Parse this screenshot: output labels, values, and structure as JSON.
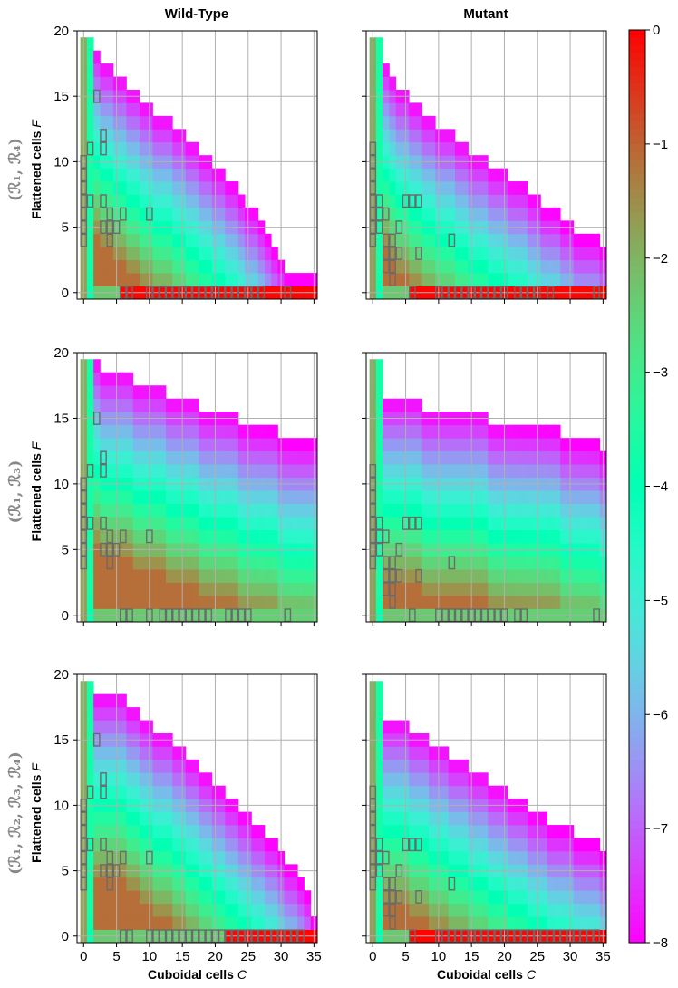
{
  "chart_data": {
    "type": "heatmap",
    "column_titles": [
      "Wild-Type",
      "Mutant"
    ],
    "row_labels": [
      "(ℛ₁, ℛ₄)",
      "(ℛ₁, ℛ₃)",
      "(ℛ₁, ℛ₂, ℛ₃, ℛ₄)"
    ],
    "ylabel_text": "Flattened cells ",
    "ylabel_var": "F",
    "xlabel_text": "Cuboidal cells ",
    "xlabel_var": "C",
    "xlim": [
      -1,
      35.5
    ],
    "ylim": [
      -0.5,
      20
    ],
    "xticks": [
      0,
      5,
      10,
      15,
      20,
      25,
      30,
      35
    ],
    "yticks": [
      0,
      5,
      10,
      15,
      20
    ],
    "grid": true,
    "colorbar": {
      "min": -8,
      "max": 0,
      "ticks": [
        0,
        -1,
        -2,
        -3,
        -4,
        -5,
        -6,
        -7,
        -8
      ],
      "tick_labels": [
        "0",
        "−1",
        "−2",
        "−3",
        "−4",
        "−5",
        "−6",
        "−7",
        "−8"
      ],
      "colormap": "rainbow"
    },
    "panels": [
      {
        "row": 0,
        "col": 0,
        "upper_boundary_F": [
          19,
          19,
          18,
          17,
          17,
          16,
          16,
          15,
          15,
          14,
          14,
          13,
          13,
          13,
          12,
          12,
          11,
          11,
          10,
          10,
          9,
          9,
          8,
          8,
          7,
          6,
          6,
          5,
          4,
          3,
          2,
          1,
          1,
          1,
          1,
          1,
          0
        ],
        "strong_row_0": [
          6,
          35
        ],
        "boxes": [
          [
            0,
            4
          ],
          [
            0,
            5
          ],
          [
            0,
            6
          ],
          [
            0,
            7
          ],
          [
            0,
            8
          ],
          [
            0,
            9
          ],
          [
            0,
            10
          ],
          [
            1,
            7
          ],
          [
            1,
            11
          ],
          [
            2,
            15
          ],
          [
            3,
            7
          ],
          [
            3,
            11
          ],
          [
            3,
            12
          ],
          [
            3,
            5
          ],
          [
            4,
            4
          ],
          [
            4,
            5
          ],
          [
            4,
            6
          ],
          [
            5,
            5
          ],
          [
            6,
            6
          ],
          [
            10,
            6
          ],
          [
            6,
            0
          ],
          [
            7,
            0
          ],
          [
            10,
            0
          ],
          [
            11,
            0
          ],
          [
            12,
            0
          ],
          [
            13,
            0
          ],
          [
            14,
            0
          ],
          [
            15,
            0
          ],
          [
            16,
            0
          ],
          [
            17,
            0
          ],
          [
            18,
            0
          ],
          [
            19,
            0
          ],
          [
            20,
            0
          ],
          [
            21,
            0
          ],
          [
            22,
            0
          ],
          [
            23,
            0
          ],
          [
            24,
            0
          ],
          [
            25,
            0
          ],
          [
            26,
            0
          ],
          [
            27,
            0
          ],
          [
            31,
            0
          ]
        ]
      },
      {
        "row": 0,
        "col": 1,
        "upper_boundary_F": [
          19,
          19,
          17,
          16,
          15,
          15,
          14,
          14,
          13,
          13,
          12,
          12,
          12,
          11,
          11,
          10,
          10,
          10,
          9,
          9,
          9,
          8,
          8,
          8,
          7,
          7,
          6,
          6,
          6,
          5,
          5,
          4,
          4,
          4,
          4,
          3,
          0
        ],
        "strong_row_0": [
          6,
          35
        ],
        "boxes": [
          [
            0,
            4
          ],
          [
            0,
            5
          ],
          [
            0,
            6
          ],
          [
            0,
            7
          ],
          [
            0,
            8
          ],
          [
            0,
            9
          ],
          [
            0,
            10
          ],
          [
            0,
            11
          ],
          [
            1,
            5
          ],
          [
            1,
            6
          ],
          [
            1,
            7
          ],
          [
            2,
            2
          ],
          [
            2,
            3
          ],
          [
            2,
            4
          ],
          [
            2,
            6
          ],
          [
            3,
            1
          ],
          [
            3,
            2
          ],
          [
            3,
            3
          ],
          [
            3,
            4
          ],
          [
            4,
            3
          ],
          [
            4,
            5
          ],
          [
            5,
            7
          ],
          [
            6,
            7
          ],
          [
            7,
            7
          ],
          [
            7,
            3
          ],
          [
            12,
            4
          ],
          [
            6,
            0
          ],
          [
            10,
            0
          ],
          [
            11,
            0
          ],
          [
            12,
            0
          ],
          [
            13,
            0
          ],
          [
            14,
            0
          ],
          [
            15,
            0
          ],
          [
            16,
            0
          ],
          [
            17,
            0
          ],
          [
            18,
            0
          ],
          [
            19,
            0
          ],
          [
            20,
            0
          ],
          [
            22,
            0
          ],
          [
            23,
            0
          ],
          [
            24,
            0
          ],
          [
            25,
            0
          ],
          [
            27,
            0
          ],
          [
            34,
            0
          ]
        ]
      },
      {
        "row": 1,
        "col": 0,
        "upper_boundary_F": [
          19,
          19,
          19,
          18,
          18,
          18,
          18,
          18,
          17,
          17,
          17,
          17,
          17,
          16,
          16,
          16,
          16,
          16,
          15,
          15,
          15,
          15,
          15,
          15,
          14,
          14,
          14,
          14,
          14,
          14,
          13,
          13,
          13,
          13,
          13,
          13,
          0
        ],
        "strong_row_0": null,
        "boxes": [
          [
            0,
            4
          ],
          [
            0,
            5
          ],
          [
            0,
            6
          ],
          [
            0,
            7
          ],
          [
            0,
            8
          ],
          [
            0,
            9
          ],
          [
            0,
            10
          ],
          [
            1,
            7
          ],
          [
            1,
            11
          ],
          [
            2,
            15
          ],
          [
            3,
            7
          ],
          [
            3,
            11
          ],
          [
            3,
            12
          ],
          [
            3,
            5
          ],
          [
            4,
            4
          ],
          [
            4,
            5
          ],
          [
            4,
            6
          ],
          [
            5,
            5
          ],
          [
            6,
            6
          ],
          [
            10,
            6
          ],
          [
            6,
            0
          ],
          [
            7,
            0
          ],
          [
            10,
            0
          ],
          [
            12,
            0
          ],
          [
            13,
            0
          ],
          [
            14,
            0
          ],
          [
            15,
            0
          ],
          [
            16,
            0
          ],
          [
            17,
            0
          ],
          [
            18,
            0
          ],
          [
            19,
            0
          ],
          [
            22,
            0
          ],
          [
            23,
            0
          ],
          [
            24,
            0
          ],
          [
            25,
            0
          ],
          [
            31,
            0
          ]
        ]
      },
      {
        "row": 1,
        "col": 1,
        "upper_boundary_F": [
          19,
          19,
          16,
          16,
          16,
          16,
          16,
          16,
          15,
          15,
          15,
          15,
          15,
          15,
          15,
          15,
          15,
          15,
          14,
          14,
          14,
          14,
          14,
          14,
          14,
          14,
          14,
          14,
          14,
          13,
          13,
          13,
          13,
          13,
          13,
          12,
          0
        ],
        "strong_row_0": null,
        "boxes": [
          [
            0,
            4
          ],
          [
            0,
            5
          ],
          [
            0,
            6
          ],
          [
            0,
            7
          ],
          [
            0,
            8
          ],
          [
            0,
            9
          ],
          [
            0,
            10
          ],
          [
            0,
            11
          ],
          [
            1,
            5
          ],
          [
            1,
            6
          ],
          [
            1,
            7
          ],
          [
            2,
            2
          ],
          [
            2,
            3
          ],
          [
            2,
            4
          ],
          [
            2,
            6
          ],
          [
            3,
            1
          ],
          [
            3,
            2
          ],
          [
            3,
            3
          ],
          [
            3,
            4
          ],
          [
            4,
            3
          ],
          [
            4,
            5
          ],
          [
            5,
            7
          ],
          [
            6,
            7
          ],
          [
            7,
            7
          ],
          [
            7,
            3
          ],
          [
            12,
            4
          ],
          [
            6,
            0
          ],
          [
            10,
            0
          ],
          [
            11,
            0
          ],
          [
            12,
            0
          ],
          [
            13,
            0
          ],
          [
            14,
            0
          ],
          [
            15,
            0
          ],
          [
            16,
            0
          ],
          [
            17,
            0
          ],
          [
            18,
            0
          ],
          [
            19,
            0
          ],
          [
            20,
            0
          ],
          [
            22,
            0
          ],
          [
            23,
            0
          ],
          [
            34,
            0
          ]
        ]
      },
      {
        "row": 2,
        "col": 0,
        "upper_boundary_F": [
          19,
          19,
          18,
          18,
          18,
          18,
          18,
          17,
          17,
          16,
          16,
          15,
          15,
          15,
          14,
          14,
          13,
          13,
          12,
          12,
          11,
          11,
          10,
          10,
          9,
          9,
          8,
          8,
          7,
          7,
          6,
          5,
          5,
          4,
          3,
          1,
          0
        ],
        "strong_row_0": [
          22,
          35
        ],
        "boxes": [
          [
            0,
            4
          ],
          [
            0,
            5
          ],
          [
            0,
            6
          ],
          [
            0,
            7
          ],
          [
            0,
            8
          ],
          [
            0,
            9
          ],
          [
            0,
            10
          ],
          [
            1,
            7
          ],
          [
            1,
            11
          ],
          [
            2,
            15
          ],
          [
            3,
            7
          ],
          [
            3,
            11
          ],
          [
            3,
            12
          ],
          [
            3,
            5
          ],
          [
            4,
            4
          ],
          [
            4,
            5
          ],
          [
            4,
            6
          ],
          [
            5,
            5
          ],
          [
            6,
            6
          ],
          [
            10,
            6
          ],
          [
            6,
            0
          ],
          [
            7,
            0
          ],
          [
            10,
            0
          ],
          [
            11,
            0
          ],
          [
            12,
            0
          ],
          [
            13,
            0
          ],
          [
            14,
            0
          ],
          [
            15,
            0
          ],
          [
            16,
            0
          ],
          [
            17,
            0
          ],
          [
            18,
            0
          ],
          [
            19,
            0
          ],
          [
            20,
            0
          ],
          [
            21,
            0
          ],
          [
            22,
            0
          ],
          [
            23,
            0
          ],
          [
            24,
            0
          ],
          [
            25,
            0
          ],
          [
            26,
            0
          ],
          [
            27,
            0
          ],
          [
            28,
            0
          ],
          [
            29,
            0
          ],
          [
            30,
            0
          ],
          [
            31,
            0
          ],
          [
            32,
            0
          ],
          [
            33,
            0
          ]
        ]
      },
      {
        "row": 2,
        "col": 1,
        "upper_boundary_F": [
          19,
          19,
          16,
          16,
          16,
          16,
          15,
          15,
          15,
          14,
          14,
          14,
          13,
          13,
          13,
          12,
          12,
          12,
          11,
          11,
          11,
          10,
          10,
          10,
          9,
          9,
          9,
          8,
          8,
          8,
          8,
          7,
          7,
          7,
          7,
          6,
          0
        ],
        "strong_row_0": [
          6,
          35
        ],
        "boxes": [
          [
            0,
            4
          ],
          [
            0,
            5
          ],
          [
            0,
            6
          ],
          [
            0,
            7
          ],
          [
            0,
            8
          ],
          [
            0,
            9
          ],
          [
            0,
            10
          ],
          [
            0,
            11
          ],
          [
            1,
            5
          ],
          [
            1,
            6
          ],
          [
            1,
            7
          ],
          [
            2,
            2
          ],
          [
            2,
            3
          ],
          [
            2,
            4
          ],
          [
            2,
            6
          ],
          [
            3,
            1
          ],
          [
            3,
            2
          ],
          [
            3,
            3
          ],
          [
            3,
            4
          ],
          [
            4,
            3
          ],
          [
            4,
            5
          ],
          [
            5,
            7
          ],
          [
            6,
            7
          ],
          [
            7,
            7
          ],
          [
            7,
            3
          ],
          [
            12,
            4
          ],
          [
            6,
            0
          ],
          [
            10,
            0
          ],
          [
            11,
            0
          ],
          [
            12,
            0
          ],
          [
            13,
            0
          ],
          [
            14,
            0
          ],
          [
            15,
            0
          ],
          [
            16,
            0
          ],
          [
            17,
            0
          ],
          [
            18,
            0
          ],
          [
            19,
            0
          ],
          [
            20,
            0
          ],
          [
            21,
            0
          ],
          [
            22,
            0
          ],
          [
            23,
            0
          ],
          [
            24,
            0
          ],
          [
            25,
            0
          ],
          [
            26,
            0
          ],
          [
            27,
            0
          ],
          [
            28,
            0
          ],
          [
            29,
            0
          ],
          [
            30,
            0
          ],
          [
            31,
            0
          ],
          [
            32,
            0
          ],
          [
            33,
            0
          ],
          [
            34,
            0
          ]
        ]
      }
    ]
  }
}
